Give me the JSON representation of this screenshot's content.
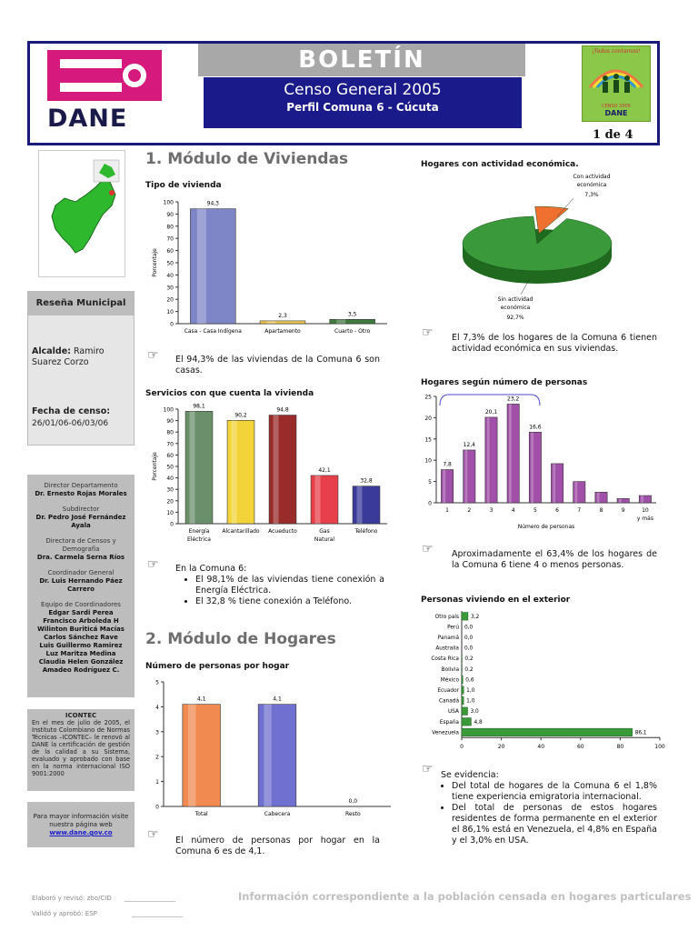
{
  "header": {
    "logo_text": "DANE",
    "title": "BOLETÍN",
    "subtitle": "Censo General 2005",
    "subtitle2": "Perfil Comuna 6 - Cúcuta",
    "page": "1 de 4",
    "censo_logo_text": "¡Todos contamos!",
    "censo_logo_small": "CENSO 2005",
    "censo_logo_dane": "DANE"
  },
  "sidebar": {
    "resena_title": "Reseña Municipal",
    "alcalde_label": "Alcalde:",
    "alcalde_value": "Ramiro Suarez Corzo",
    "fecha_label": "Fecha de censo:",
    "fecha_value": "26/01/06-06/03/06",
    "directory": [
      {
        "role": "Director Departamento",
        "names": [
          "Dr. Ernesto Rojas Morales"
        ]
      },
      {
        "role": "Subdirector",
        "names": [
          "Dr. Pedro José Fernández Ayala"
        ]
      },
      {
        "role": "Directora de Censos y Demografía",
        "names": [
          "Dra. Carmela Serna Ríos"
        ]
      },
      {
        "role": "Coordinador General",
        "names": [
          "Dr. Luis Hernando Páez Carrero"
        ]
      },
      {
        "role": "Equipo de Coordinadores",
        "names": [
          "Edgar Sardi Perea",
          "Francisco Arboleda H",
          "Wilinton Buriticá Macías",
          "Carlos Sánchez Rave",
          "Luis Guillermo Ramirez",
          "Luz Maritza Medina",
          "Claudia Helen González",
          "Amadeo Rodríguez C."
        ]
      }
    ],
    "icontec_title": "ICONTEC",
    "icontec_text": "En el mes de julio de 2005, el Instituto Colombiano de Normas Técnicas –ICONTEC– le renovó al DANE la certificación de gestión de la calidad a su Sistema, evaluado y aprobado con base en la norma internacional ISO 9001:2000",
    "info_text": "Para mayor información visite nuestra página web",
    "info_link": "www.dane.gov.co"
  },
  "section1": {
    "title": "1. Módulo de Viviendas",
    "tipo_title": "Tipo de vivienda",
    "tipo_note": "El 94,3% de las viviendas de la Comuna 6 son casas.",
    "servicios_title": "Servicios con que cuenta la vivienda",
    "servicios_note_intro": "En la Comuna 6:",
    "servicios_bullets": [
      "El 98,1% de las viviendas tiene conexión a Energía Eléctrica.",
      "El 32,8 % tiene conexión a Teléfono."
    ]
  },
  "section2": {
    "title": "2. Módulo de Hogares",
    "personas_title": "Número de personas por hogar",
    "personas_note": "El número de personas por hogar en la Comuna 6 es de 4,1."
  },
  "right": {
    "actividad_title": "Hogares con actividad económica.",
    "actividad_note": "El 7,3% de los hogares de la Comuna 6 tienen actividad económica en sus viviendas.",
    "hogares_title": "Hogares según número de personas",
    "hogares_note": "Aproximadamente el 63,4% de los hogares de la Comuna 6 tiene 4 o menos personas.",
    "exterior_title": "Personas viviendo en el exterior",
    "exterior_intro": "Se evidencia:",
    "exterior_bullets": [
      "Del total de hogares de la Comuna 6 el 1,8% tiene experiencia emigratoria internacional.",
      "Del total de personas de estos hogares residentes de forma permanente en el exterior el 86,1% está en Venezuela, el 4,8% en España y el 3,0% en USA."
    ]
  },
  "footer": {
    "line1": "Elaboró y revisó: zbo/CID",
    "line2": "Validó y aprobó: ESP",
    "blank": "________________",
    "right_text": "Información correspondiente a la población censada en hogares particulares"
  },
  "chart_data": [
    {
      "id": "tipo_vivienda",
      "type": "bar",
      "title": "Tipo de vivienda",
      "ylabel": "Porcentaje",
      "ylim": [
        0,
        100
      ],
      "yticks": [
        0,
        10,
        20,
        30,
        40,
        50,
        60,
        70,
        80,
        90,
        100
      ],
      "categories": [
        "Casa - Casa Indígena",
        "Apartamento",
        "Cuarto - Otro"
      ],
      "values": [
        94.3,
        2.3,
        3.5
      ],
      "labels": [
        "94,3",
        "2,3",
        "3,5"
      ],
      "colors": [
        "#7f86c8",
        "#f2c94c",
        "#3f7a3f"
      ]
    },
    {
      "id": "servicios",
      "type": "bar",
      "title": "Servicios con que cuenta la vivienda",
      "ylabel": "Porcentaje",
      "ylim": [
        0,
        100
      ],
      "yticks": [
        0,
        10,
        20,
        30,
        40,
        50,
        60,
        70,
        80,
        90,
        100
      ],
      "categories": [
        "Energía Eléctrica",
        "Alcantarillado",
        "Acueducto",
        "Gas Natural",
        "Teléfono"
      ],
      "values": [
        98.1,
        90.2,
        94.8,
        42.1,
        32.8
      ],
      "labels": [
        "98,1",
        "90,2",
        "94,8",
        "42,1",
        "32,8"
      ],
      "colors": [
        "#6b8f6b",
        "#f2d43a",
        "#9a2b2b",
        "#e8404a",
        "#3a3a9a"
      ]
    },
    {
      "id": "personas_hogar",
      "type": "bar",
      "title": "Número de personas por hogar",
      "ylim": [
        0,
        5
      ],
      "yticks": [
        0,
        1,
        2,
        3,
        4,
        5
      ],
      "categories": [
        "Total",
        "Cabecera",
        "Resto"
      ],
      "values": [
        4.1,
        4.1,
        0.0
      ],
      "labels": [
        "4,1",
        "4,1",
        "0,0"
      ],
      "colors": [
        "#f08a50",
        "#7070d0",
        "#999999"
      ]
    },
    {
      "id": "actividad",
      "type": "pie",
      "title": "Hogares con actividad económica.",
      "labels": [
        "Con actividad económica",
        "Sin actividad económica"
      ],
      "values": [
        7.3,
        92.7
      ],
      "value_labels": [
        "7,3%",
        "92,7%"
      ],
      "colors": [
        "#f07030",
        "#3a9a3a"
      ]
    },
    {
      "id": "hogares_personas",
      "type": "bar",
      "title": "Hogares según número de personas",
      "xlabel": "Número de personas",
      "ylim": [
        0,
        25
      ],
      "yticks": [
        0,
        5,
        10,
        15,
        20,
        25
      ],
      "categories": [
        "1",
        "2",
        "3",
        "4",
        "5",
        "6",
        "7",
        "8",
        "9",
        "10 y más"
      ],
      "values": [
        7.8,
        12.4,
        20.1,
        23.2,
        16.6,
        9.2,
        5.0,
        2.5,
        1.0,
        1.7
      ],
      "labels": [
        "7,8",
        "12,4",
        "20,1",
        "23,2",
        "16,6",
        "",
        "",
        "",
        "",
        ""
      ],
      "colors": [
        "#a050a8"
      ]
    },
    {
      "id": "exterior",
      "type": "bar",
      "orientation": "horizontal",
      "title": "Personas viviendo en el exterior",
      "xlim": [
        0,
        100
      ],
      "xticks": [
        0,
        20,
        40,
        60,
        80,
        100
      ],
      "categories": [
        "Otro país",
        "Perú",
        "Panamá",
        "Australia",
        "Costa Rica",
        "Bolivia",
        "México",
        "Ecuador",
        "Canadá",
        "USA",
        "España",
        "Venezuela"
      ],
      "values": [
        3.2,
        0.0,
        0.0,
        0.0,
        0.2,
        0.2,
        0.6,
        1.0,
        1.0,
        3.0,
        4.8,
        86.1
      ],
      "labels": [
        "3,2",
        "0,0",
        "0,0",
        "0,0",
        "0,2",
        "0,2",
        "0,6",
        "1,0",
        "1,0",
        "3,0",
        "4,8",
        "86,1"
      ],
      "colors": [
        "#3a9a3a"
      ]
    }
  ]
}
